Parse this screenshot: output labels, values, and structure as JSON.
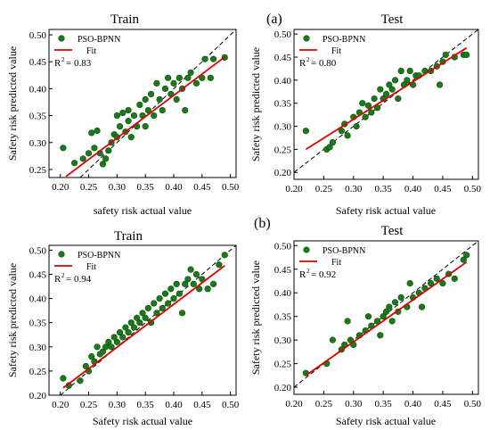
{
  "panel_labels": {
    "a": "(a)",
    "b": "(b)"
  },
  "common": {
    "legend_series": "PSO-BPNN",
    "legend_fit": "Fit",
    "point_color": "#1a7a1a",
    "fit_color": "#e00000",
    "diag_color": "#000000"
  },
  "chart_data": [
    {
      "id": "a-train",
      "type": "scatter",
      "title": "Train",
      "xlabel": "safety risk actual value",
      "ylabel": "Safety risk predicted value",
      "r2_label": "R",
      "r2_value": "= 0.83",
      "xlim": [
        0.18,
        0.51
      ],
      "ylim": [
        0.235,
        0.51
      ],
      "xticks": [
        "0.20",
        "0.25",
        "0.30",
        "0.35",
        "0.40",
        "0.45",
        "0.50"
      ],
      "yticks": [
        "0.25",
        "0.30",
        "0.35",
        "0.40",
        "0.45",
        "0.50"
      ],
      "fit": [
        [
          0.21,
          0.237
        ],
        [
          0.49,
          0.459
        ]
      ],
      "points": [
        [
          0.205,
          0.29
        ],
        [
          0.225,
          0.262
        ],
        [
          0.24,
          0.27
        ],
        [
          0.25,
          0.28
        ],
        [
          0.255,
          0.318
        ],
        [
          0.26,
          0.29
        ],
        [
          0.265,
          0.322
        ],
        [
          0.27,
          0.28
        ],
        [
          0.275,
          0.26
        ],
        [
          0.28,
          0.27
        ],
        [
          0.285,
          0.285
        ],
        [
          0.29,
          0.3
        ],
        [
          0.295,
          0.315
        ],
        [
          0.3,
          0.31
        ],
        [
          0.3,
          0.35
        ],
        [
          0.305,
          0.33
        ],
        [
          0.31,
          0.355
        ],
        [
          0.315,
          0.32
        ],
        [
          0.32,
          0.34
        ],
        [
          0.32,
          0.36
        ],
        [
          0.325,
          0.31
        ],
        [
          0.33,
          0.35
        ],
        [
          0.335,
          0.33
        ],
        [
          0.34,
          0.37
        ],
        [
          0.345,
          0.35
        ],
        [
          0.35,
          0.38
        ],
        [
          0.35,
          0.33
        ],
        [
          0.355,
          0.36
        ],
        [
          0.36,
          0.39
        ],
        [
          0.365,
          0.35
        ],
        [
          0.37,
          0.41
        ],
        [
          0.375,
          0.38
        ],
        [
          0.38,
          0.36
        ],
        [
          0.385,
          0.4
        ],
        [
          0.39,
          0.42
        ],
        [
          0.395,
          0.39
        ],
        [
          0.4,
          0.41
        ],
        [
          0.405,
          0.38
        ],
        [
          0.41,
          0.42
        ],
        [
          0.415,
          0.4
        ],
        [
          0.42,
          0.36
        ],
        [
          0.425,
          0.42
        ],
        [
          0.43,
          0.43
        ],
        [
          0.44,
          0.41
        ],
        [
          0.45,
          0.42
        ],
        [
          0.455,
          0.455
        ],
        [
          0.465,
          0.42
        ],
        [
          0.47,
          0.455
        ],
        [
          0.49,
          0.458
        ]
      ]
    },
    {
      "id": "a-test",
      "type": "scatter",
      "title": "Test",
      "xlabel": "Safety risk actual value",
      "ylabel": "Safety risk predicted value",
      "r2_label": "R",
      "r2_value": "= 0.80",
      "xlim": [
        0.2,
        0.51
      ],
      "ylim": [
        0.185,
        0.51
      ],
      "xticks": [
        "0.20",
        "0.25",
        "0.30",
        "0.35",
        "0.40",
        "0.45",
        "0.50"
      ],
      "yticks": [
        "0.20",
        "0.25",
        "0.30",
        "0.35",
        "0.40",
        "0.45",
        "0.50"
      ],
      "fit": [
        [
          0.22,
          0.25
        ],
        [
          0.49,
          0.47
        ]
      ],
      "points": [
        [
          0.22,
          0.29
        ],
        [
          0.255,
          0.25
        ],
        [
          0.26,
          0.255
        ],
        [
          0.265,
          0.265
        ],
        [
          0.28,
          0.29
        ],
        [
          0.285,
          0.305
        ],
        [
          0.29,
          0.28
        ],
        [
          0.3,
          0.32
        ],
        [
          0.305,
          0.3
        ],
        [
          0.31,
          0.33
        ],
        [
          0.315,
          0.35
        ],
        [
          0.32,
          0.32
        ],
        [
          0.325,
          0.345
        ],
        [
          0.33,
          0.33
        ],
        [
          0.335,
          0.36
        ],
        [
          0.34,
          0.34
        ],
        [
          0.345,
          0.38
        ],
        [
          0.35,
          0.36
        ],
        [
          0.355,
          0.37
        ],
        [
          0.36,
          0.39
        ],
        [
          0.365,
          0.38
        ],
        [
          0.37,
          0.4
        ],
        [
          0.375,
          0.36
        ],
        [
          0.38,
          0.42
        ],
        [
          0.385,
          0.39
        ],
        [
          0.39,
          0.4
        ],
        [
          0.395,
          0.42
        ],
        [
          0.4,
          0.39
        ],
        [
          0.405,
          0.41
        ],
        [
          0.41,
          0.41
        ],
        [
          0.42,
          0.42
        ],
        [
          0.43,
          0.42
        ],
        [
          0.44,
          0.43
        ],
        [
          0.445,
          0.39
        ],
        [
          0.45,
          0.44
        ],
        [
          0.455,
          0.455
        ],
        [
          0.47,
          0.45
        ],
        [
          0.485,
          0.455
        ],
        [
          0.49,
          0.455
        ]
      ]
    },
    {
      "id": "b-train",
      "type": "scatter",
      "title": "Train",
      "xlabel": "Safety risk actual value",
      "ylabel": "Safety risk predicted value",
      "r2_label": "R",
      "r2_value": "= 0.94",
      "xlim": [
        0.18,
        0.51
      ],
      "ylim": [
        0.2,
        0.51
      ],
      "xticks": [
        "0.20",
        "0.25",
        "0.30",
        "0.35",
        "0.40",
        "0.45",
        "0.50"
      ],
      "yticks": [
        "0.20",
        "0.25",
        "0.30",
        "0.35",
        "0.40",
        "0.45",
        "0.50"
      ],
      "fit": [
        [
          0.205,
          0.215
        ],
        [
          0.49,
          0.468
        ]
      ],
      "points": [
        [
          0.205,
          0.235
        ],
        [
          0.215,
          0.22
        ],
        [
          0.235,
          0.23
        ],
        [
          0.245,
          0.26
        ],
        [
          0.25,
          0.25
        ],
        [
          0.255,
          0.28
        ],
        [
          0.26,
          0.27
        ],
        [
          0.265,
          0.3
        ],
        [
          0.27,
          0.285
        ],
        [
          0.275,
          0.29
        ],
        [
          0.28,
          0.3
        ],
        [
          0.285,
          0.31
        ],
        [
          0.29,
          0.3
        ],
        [
          0.295,
          0.32
        ],
        [
          0.3,
          0.31
        ],
        [
          0.305,
          0.33
        ],
        [
          0.31,
          0.32
        ],
        [
          0.315,
          0.34
        ],
        [
          0.32,
          0.33
        ],
        [
          0.325,
          0.35
        ],
        [
          0.33,
          0.34
        ],
        [
          0.335,
          0.36
        ],
        [
          0.34,
          0.35
        ],
        [
          0.345,
          0.37
        ],
        [
          0.35,
          0.36
        ],
        [
          0.355,
          0.38
        ],
        [
          0.36,
          0.35
        ],
        [
          0.365,
          0.39
        ],
        [
          0.37,
          0.37
        ],
        [
          0.375,
          0.4
        ],
        [
          0.38,
          0.38
        ],
        [
          0.385,
          0.41
        ],
        [
          0.39,
          0.39
        ],
        [
          0.395,
          0.42
        ],
        [
          0.4,
          0.4
        ],
        [
          0.405,
          0.43
        ],
        [
          0.41,
          0.41
        ],
        [
          0.415,
          0.37
        ],
        [
          0.42,
          0.43
        ],
        [
          0.425,
          0.44
        ],
        [
          0.43,
          0.46
        ],
        [
          0.435,
          0.43
        ],
        [
          0.44,
          0.45
        ],
        [
          0.445,
          0.42
        ],
        [
          0.45,
          0.44
        ],
        [
          0.46,
          0.42
        ],
        [
          0.47,
          0.43
        ],
        [
          0.48,
          0.47
        ],
        [
          0.49,
          0.49
        ]
      ]
    },
    {
      "id": "b-test",
      "type": "scatter",
      "title": "Test",
      "xlabel": "Safety risk actual value",
      "ylabel": "Safety risk predicted value",
      "r2_label": "R",
      "r2_value": "= 0.92",
      "xlim": [
        0.2,
        0.51
      ],
      "ylim": [
        0.185,
        0.51
      ],
      "xticks": [
        "0.20",
        "0.25",
        "0.30",
        "0.35",
        "0.40",
        "0.45",
        "0.50"
      ],
      "yticks": [
        "0.20",
        "0.25",
        "0.30",
        "0.35",
        "0.40",
        "0.45",
        "0.50"
      ],
      "fit": [
        [
          0.22,
          0.225
        ],
        [
          0.49,
          0.465
        ]
      ],
      "points": [
        [
          0.22,
          0.23
        ],
        [
          0.255,
          0.25
        ],
        [
          0.265,
          0.3
        ],
        [
          0.28,
          0.28
        ],
        [
          0.285,
          0.29
        ],
        [
          0.29,
          0.34
        ],
        [
          0.295,
          0.3
        ],
        [
          0.3,
          0.29
        ],
        [
          0.31,
          0.31
        ],
        [
          0.32,
          0.32
        ],
        [
          0.325,
          0.35
        ],
        [
          0.33,
          0.33
        ],
        [
          0.34,
          0.34
        ],
        [
          0.345,
          0.31
        ],
        [
          0.35,
          0.35
        ],
        [
          0.355,
          0.36
        ],
        [
          0.36,
          0.37
        ],
        [
          0.365,
          0.34
        ],
        [
          0.37,
          0.38
        ],
        [
          0.375,
          0.36
        ],
        [
          0.38,
          0.39
        ],
        [
          0.39,
          0.37
        ],
        [
          0.395,
          0.42
        ],
        [
          0.4,
          0.39
        ],
        [
          0.41,
          0.4
        ],
        [
          0.415,
          0.37
        ],
        [
          0.42,
          0.41
        ],
        [
          0.43,
          0.42
        ],
        [
          0.44,
          0.43
        ],
        [
          0.45,
          0.42
        ],
        [
          0.46,
          0.44
        ],
        [
          0.47,
          0.43
        ],
        [
          0.485,
          0.47
        ],
        [
          0.49,
          0.48
        ]
      ]
    }
  ]
}
